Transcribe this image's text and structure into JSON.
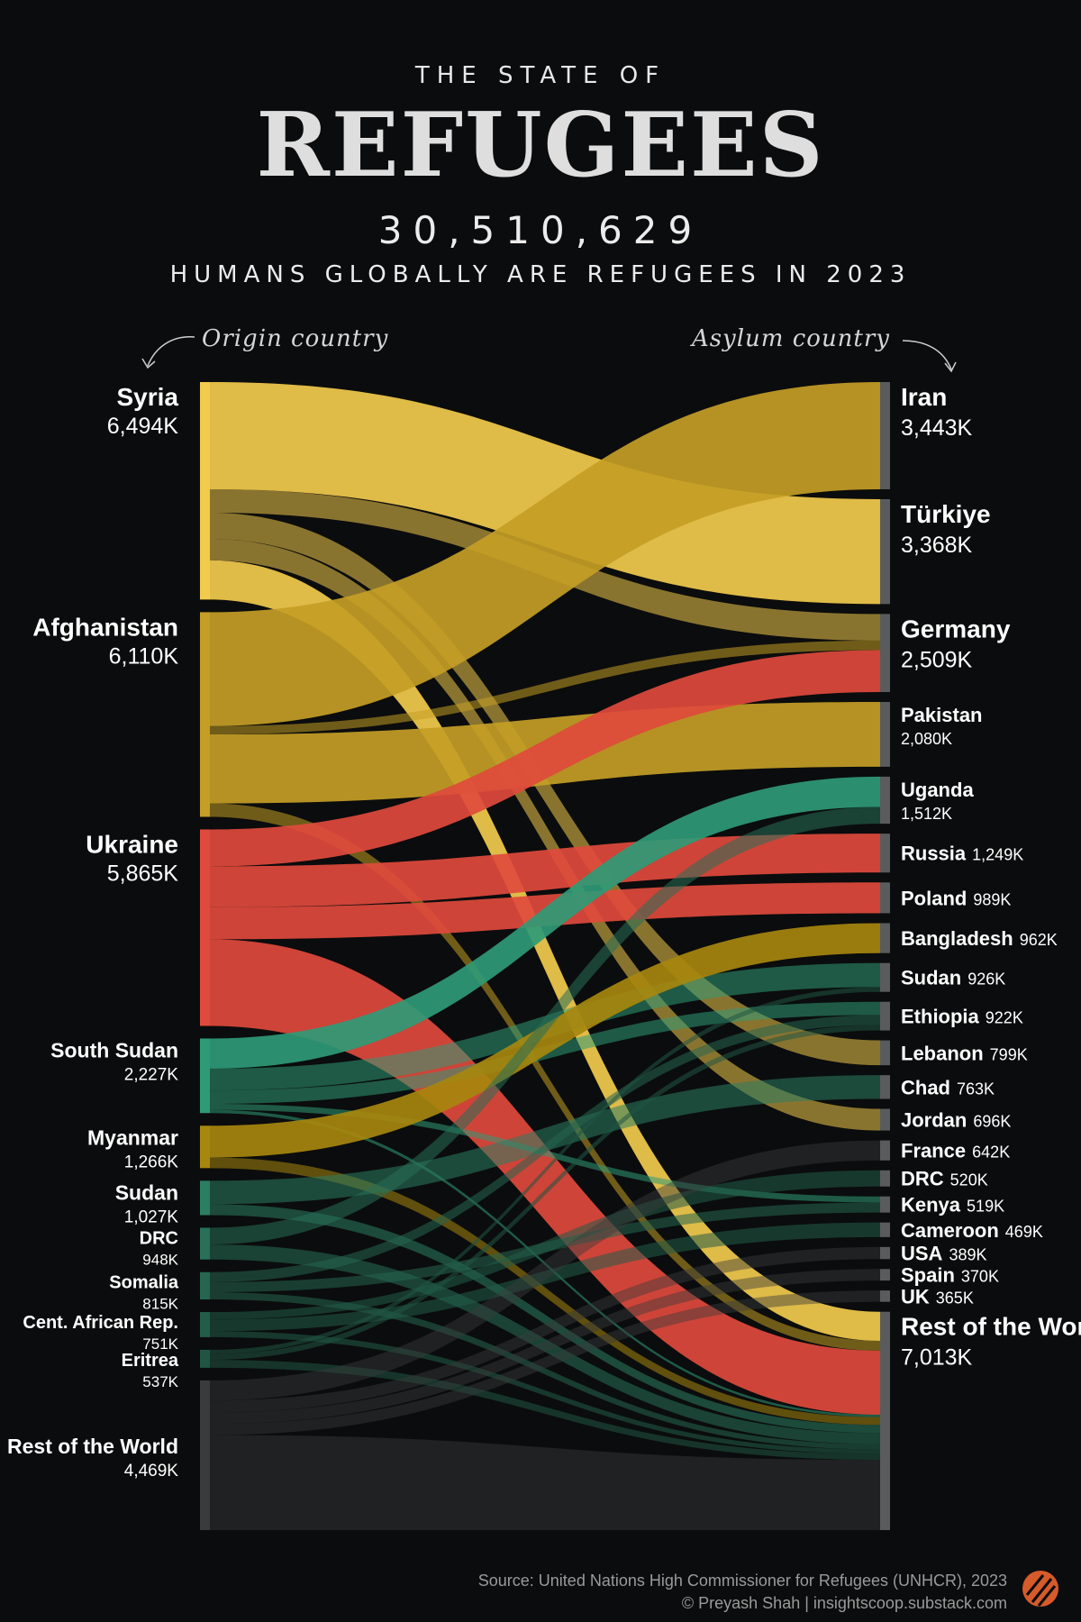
{
  "header": {
    "eyebrow": "THE STATE OF",
    "title": "REFUGEES",
    "total": "30,510,629",
    "subtitle": "HUMANS GLOBALLY ARE REFUGEES IN 2023"
  },
  "annotations": {
    "left": "Origin country",
    "right": "Asylum country"
  },
  "footer": {
    "source": "Source: United Nations High Commissioner for Refugees (UNHCR), 2023",
    "credit": "© Preyash Shah | insightscoop.substack.com"
  },
  "colors": {
    "background": "#0b0c0d",
    "syria": "#f2cb4c",
    "afghanistan": "#c49e25",
    "ukraine": "#e04a3c",
    "south_sudan": "#2f9a76",
    "myanmar": "#a7870e",
    "sudan": "#2c7e62",
    "drc": "#287058",
    "somalia": "#266650",
    "car": "#235c49",
    "eritrea": "#215543",
    "rest": "#3a3b3c",
    "asylum_bar": "#5a5b5c"
  },
  "chart_data": {
    "type": "sankey",
    "title": "REFUGEES",
    "units": "thousands",
    "origins": [
      {
        "name": "Syria",
        "value": 6494,
        "label": "6,494K",
        "color": "#f2cb4c"
      },
      {
        "name": "Afghanistan",
        "value": 6110,
        "label": "6,110K",
        "color": "#c49e25"
      },
      {
        "name": "Ukraine",
        "value": 5865,
        "label": "5,865K",
        "color": "#e04a3c"
      },
      {
        "name": "South Sudan",
        "value": 2227,
        "label": "2,227K",
        "color": "#2f9a76"
      },
      {
        "name": "Myanmar",
        "value": 1266,
        "label": "1,266K",
        "color": "#a7870e"
      },
      {
        "name": "Sudan",
        "value": 1027,
        "label": "1,027K",
        "color": "#2c7e62"
      },
      {
        "name": "DRC",
        "value": 948,
        "label": "948K",
        "color": "#287058"
      },
      {
        "name": "Somalia",
        "value": 815,
        "label": "815K",
        "color": "#266650"
      },
      {
        "name": "Cent. African Rep.",
        "value": 751,
        "label": "751K",
        "color": "#235c49"
      },
      {
        "name": "Eritrea",
        "value": 537,
        "label": "537K",
        "color": "#215543"
      },
      {
        "name": "Rest of the World",
        "value": 4469,
        "label": "4,469K",
        "color": "#3a3b3c"
      }
    ],
    "destinations": [
      {
        "name": "Iran",
        "value": 3443,
        "label": "3,443K"
      },
      {
        "name": "Türkiye",
        "value": 3368,
        "label": "3,368K"
      },
      {
        "name": "Germany",
        "value": 2509,
        "label": "2,509K"
      },
      {
        "name": "Pakistan",
        "value": 2080,
        "label": "2,080K"
      },
      {
        "name": "Uganda",
        "value": 1512,
        "label": "1,512K"
      },
      {
        "name": "Russia",
        "value": 1249,
        "label": "1,249K"
      },
      {
        "name": "Poland",
        "value": 989,
        "label": "989K"
      },
      {
        "name": "Bangladesh",
        "value": 962,
        "label": "962K"
      },
      {
        "name": "Sudan",
        "value": 926,
        "label": "926K"
      },
      {
        "name": "Ethiopia",
        "value": 922,
        "label": "922K"
      },
      {
        "name": "Lebanon",
        "value": 799,
        "label": "799K"
      },
      {
        "name": "Chad",
        "value": 763,
        "label": "763K"
      },
      {
        "name": "Jordan",
        "value": 696,
        "label": "696K"
      },
      {
        "name": "France",
        "value": 642,
        "label": "642K"
      },
      {
        "name": "DRC",
        "value": 520,
        "label": "520K"
      },
      {
        "name": "Kenya",
        "value": 519,
        "label": "519K"
      },
      {
        "name": "Cameroon",
        "value": 469,
        "label": "469K"
      },
      {
        "name": "USA",
        "value": 389,
        "label": "389K"
      },
      {
        "name": "Spain",
        "value": 370,
        "label": "370K"
      },
      {
        "name": "UK",
        "value": 365,
        "label": "365K"
      },
      {
        "name": "Rest of the World",
        "value": 7013,
        "label": "7,013K"
      }
    ],
    "flows": [
      {
        "from": "Syria",
        "to": "Türkiye",
        "value": 3200
      },
      {
        "from": "Syria",
        "to": "Germany",
        "value": 700
      },
      {
        "from": "Syria",
        "to": "Lebanon",
        "value": 780
      },
      {
        "from": "Syria",
        "to": "Jordan",
        "value": 640
      },
      {
        "from": "Syria",
        "to": "Rest of the World",
        "value": 1174
      },
      {
        "from": "Afghanistan",
        "to": "Iran",
        "value": 3400
      },
      {
        "from": "Afghanistan",
        "to": "Pakistan",
        "value": 2060
      },
      {
        "from": "Afghanistan",
        "to": "Germany",
        "value": 250
      },
      {
        "from": "Afghanistan",
        "to": "Rest of the World",
        "value": 400
      },
      {
        "from": "Ukraine",
        "to": "Germany",
        "value": 1100
      },
      {
        "from": "Ukraine",
        "to": "Russia",
        "value": 1220
      },
      {
        "from": "Ukraine",
        "to": "Poland",
        "value": 960
      },
      {
        "from": "Ukraine",
        "to": "Rest of the World",
        "value": 2585
      },
      {
        "from": "South Sudan",
        "to": "Uganda",
        "value": 900
      },
      {
        "from": "South Sudan",
        "to": "Sudan",
        "value": 650
      },
      {
        "from": "South Sudan",
        "to": "Ethiopia",
        "value": 400
      },
      {
        "from": "South Sudan",
        "to": "Kenya",
        "value": 180
      },
      {
        "from": "South Sudan",
        "to": "Rest of the World",
        "value": 97
      },
      {
        "from": "Myanmar",
        "to": "Bangladesh",
        "value": 950
      },
      {
        "from": "Myanmar",
        "to": "Rest of the World",
        "value": 316
      },
      {
        "from": "Sudan",
        "to": "Chad",
        "value": 700
      },
      {
        "from": "Sudan",
        "to": "Rest of the World",
        "value": 327
      },
      {
        "from": "DRC",
        "to": "Uganda",
        "value": 500
      },
      {
        "from": "DRC",
        "to": "Rest of the World",
        "value": 448
      },
      {
        "from": "Somalia",
        "to": "Ethiopia",
        "value": 300
      },
      {
        "from": "Somalia",
        "to": "Kenya",
        "value": 300
      },
      {
        "from": "Somalia",
        "to": "Rest of the World",
        "value": 215
      },
      {
        "from": "Cent. African Rep.",
        "to": "Cameroon",
        "value": 350
      },
      {
        "from": "Cent. African Rep.",
        "to": "DRC",
        "value": 220
      },
      {
        "from": "Cent. African Rep.",
        "to": "Rest of the World",
        "value": 181
      },
      {
        "from": "Eritrea",
        "to": "Ethiopia",
        "value": 170
      },
      {
        "from": "Eritrea",
        "to": "Sudan",
        "value": 130
      },
      {
        "from": "Eritrea",
        "to": "Rest of the World",
        "value": 237
      },
      {
        "from": "Rest of the World",
        "to": "France",
        "value": 600
      },
      {
        "from": "Rest of the World",
        "to": "USA",
        "value": 360
      },
      {
        "from": "Rest of the World",
        "to": "Spain",
        "value": 340
      },
      {
        "from": "Rest of the World",
        "to": "UK",
        "value": 330
      },
      {
        "from": "Rest of the World",
        "to": "Rest of the World",
        "value": 2839
      }
    ]
  }
}
